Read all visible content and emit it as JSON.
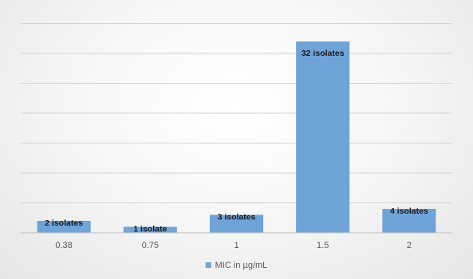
{
  "chart_data": {
    "type": "bar",
    "categories": [
      "0.38",
      "0.75",
      "1",
      "1.5",
      "2"
    ],
    "values": [
      2,
      1,
      3,
      32,
      4
    ],
    "data_labels": [
      "2 isolates",
      "1 isolate",
      "3 isolates",
      "32 isolates",
      "4 isolates"
    ],
    "legend": "MIC in µg/mL",
    "legend_position": "bottom",
    "ylim": [
      0,
      36
    ],
    "yticks": [
      0,
      5,
      10,
      15,
      20,
      25,
      30,
      35
    ],
    "y_tick_labels_visible": false,
    "grid": true,
    "colors": {
      "bar": "#6fa4d9"
    }
  }
}
